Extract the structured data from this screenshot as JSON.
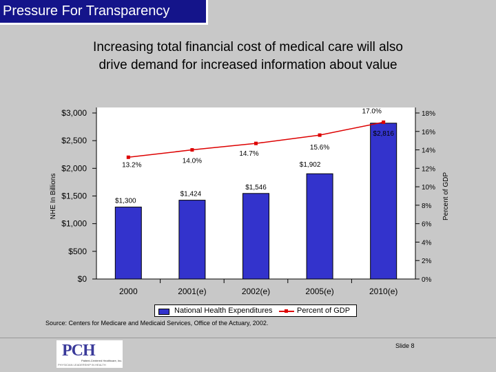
{
  "header": {
    "title": "Pressure For Transparency"
  },
  "subtitle": {
    "line1": "Increasing total financial cost of medical care will also",
    "line2": "drive demand for increased information about value"
  },
  "colors": {
    "background": "#c8c8c8",
    "header_bar": "#14148a",
    "bar_fill": "#3333cc",
    "line_color": "#dd0000"
  },
  "chart_data": {
    "type": "bar",
    "categories": [
      "2000",
      "2001(e)",
      "2002(e)",
      "2005(e)",
      "2010(e)"
    ],
    "series": [
      {
        "name": "National Health Expenditures",
        "type": "bar",
        "axis": "left",
        "values": [
          1300,
          1424,
          1546,
          1902,
          2816
        ],
        "labels": [
          "$1,300",
          "$1,424",
          "$1,546",
          "$1,902",
          "$2,816"
        ]
      },
      {
        "name": "Percent of GDP",
        "type": "line",
        "axis": "right",
        "values": [
          13.2,
          14.0,
          14.7,
          15.6,
          17.0
        ],
        "labels": [
          "13.2%",
          "14.0%",
          "14.7%",
          "15.6%",
          "17.0%"
        ]
      }
    ],
    "ylabel": "NHE In Billions",
    "ylabel_right": "Percent of GDP",
    "ylim": [
      0,
      3000
    ],
    "ylim_right": [
      0,
      18
    ],
    "yticks": [
      "$0",
      "$500",
      "$1,000",
      "$1,500",
      "$2,000",
      "$2,500",
      "$3,000"
    ],
    "yticks_right": [
      "0%",
      "2%",
      "4%",
      "6%",
      "8%",
      "10%",
      "12%",
      "14%",
      "16%",
      "18%"
    ],
    "legend": "bottom",
    "grid": false
  },
  "source": "Source: Centers for Medicare and Medicaid Services, Office of the Actuary, 2002.",
  "footer": {
    "logo_text": "PCH",
    "logo_line1": "Patient-Centered Healthcare, Inc.",
    "logo_line2": "PHYSICIAN LEADERSHIP IN HEALTH",
    "slide_label": "Slide 8"
  }
}
